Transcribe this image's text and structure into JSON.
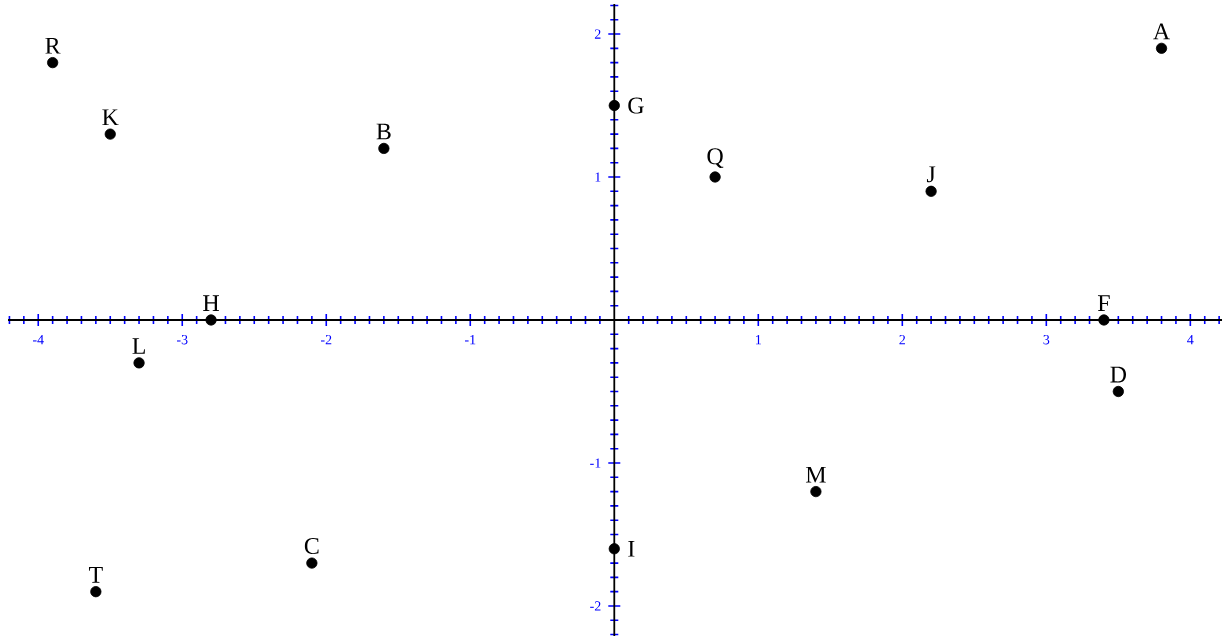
{
  "chart_data": {
    "type": "scatter",
    "marker": "circle",
    "xlim": [
      -4.21,
      4.22
    ],
    "ylim": [
      -2.21,
      2.21
    ],
    "xticks": [
      -4,
      -3,
      -2,
      -1,
      1,
      2,
      3,
      4
    ],
    "yticks": [
      -2,
      -1,
      1,
      2
    ],
    "series": [
      {
        "color": "#000000",
        "x": [
          -3.9,
          -3.5,
          -1.6,
          0,
          0.7,
          2.2,
          3.8,
          -2.8,
          3.4,
          -3.3,
          3.5,
          1.4,
          0,
          -2.1,
          -3.6
        ],
        "values": [
          1.8,
          1.3,
          1.2,
          1.5,
          1,
          0.9,
          1.9,
          0,
          0,
          -0.3,
          -0.5,
          -1.2,
          -1.6,
          -1.7,
          -1.9
        ]
      }
    ],
    "annotations": [
      {
        "text": "R",
        "x": -3.9,
        "y": 1.8
      },
      {
        "text": "K",
        "x": -3.5,
        "y": 1.3
      },
      {
        "text": "B",
        "x": -1.6,
        "y": 1.2
      },
      {
        "text": "G",
        "x": 0,
        "y": 1.5
      },
      {
        "text": "Q",
        "x": 0.7,
        "y": 1
      },
      {
        "text": "J",
        "x": 2.2,
        "y": 0.9
      },
      {
        "text": "A",
        "x": 3.8,
        "y": 1.9
      },
      {
        "text": "H",
        "x": -2.8,
        "y": 0
      },
      {
        "text": "F",
        "x": 3.4,
        "y": 0
      },
      {
        "text": "L",
        "x": -3.3,
        "y": -0.3
      },
      {
        "text": "D",
        "x": 3.5,
        "y": -0.5
      },
      {
        "text": "M",
        "x": 1.4,
        "y": -1.2
      },
      {
        "text": "I",
        "x": 0,
        "y": -1.6
      },
      {
        "text": "C",
        "x": -2.1,
        "y": -1.7
      },
      {
        "text": "T",
        "x": -3.6,
        "y": -1.9
      }
    ]
  }
}
